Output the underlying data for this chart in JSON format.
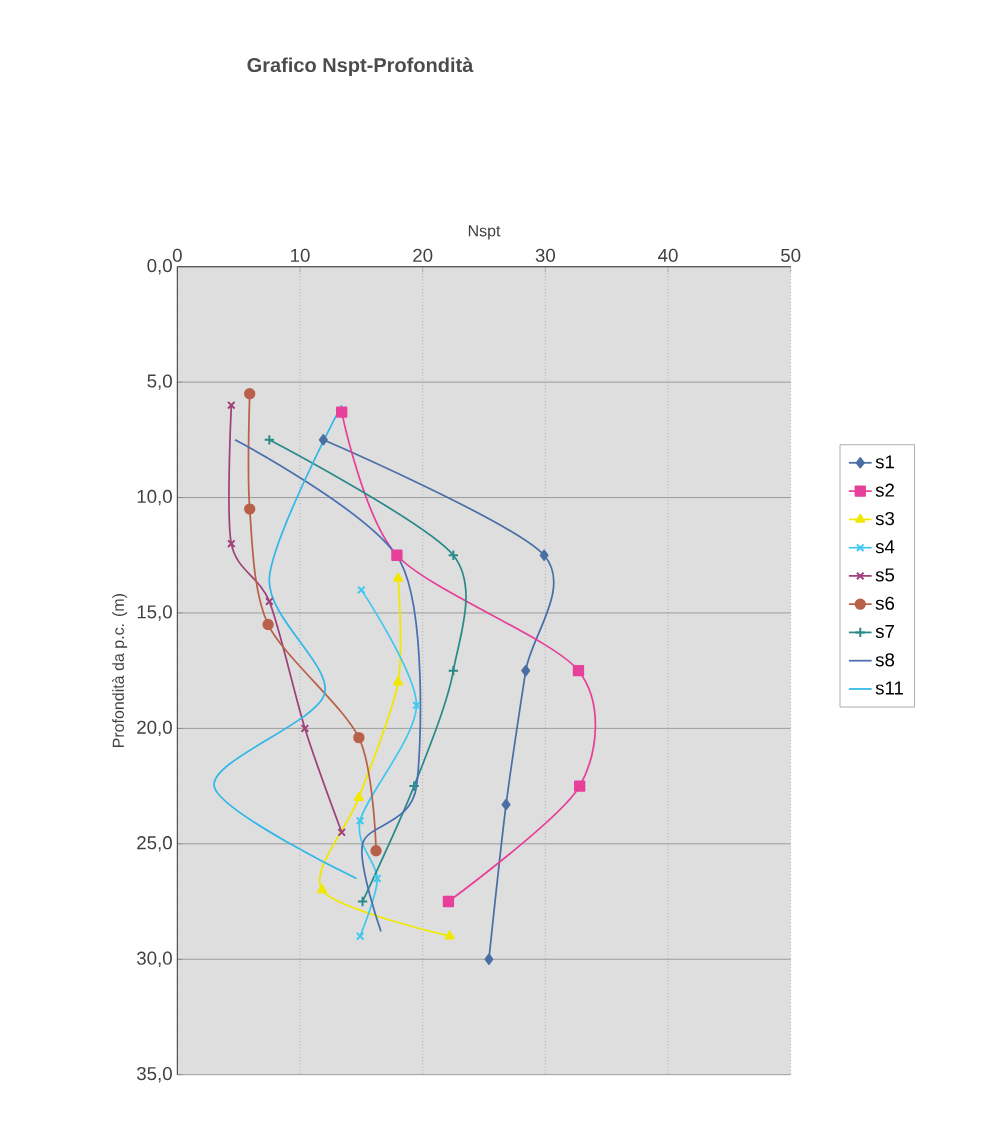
{
  "chart_data": {
    "type": "line",
    "title": "Grafico Nspt-Profondità",
    "xlabel": "Nspt",
    "ylabel": "Profondità da p.c. (m)",
    "xlim": [
      0,
      50
    ],
    "xticks": [
      0,
      10,
      20,
      30,
      40,
      50
    ],
    "ylim": [
      35,
      0
    ],
    "yticks": [
      {
        "value": 0,
        "label": "0,0"
      },
      {
        "value": 5,
        "label": "5,0"
      },
      {
        "value": 10,
        "label": "10,0"
      },
      {
        "value": 15,
        "label": "15,0"
      },
      {
        "value": 20,
        "label": "20,0"
      },
      {
        "value": 25,
        "label": "25,0"
      },
      {
        "value": 30,
        "label": "30,0"
      },
      {
        "value": 35,
        "label": "35,0"
      }
    ],
    "grid": true,
    "legend": "right",
    "series": [
      {
        "name": "s1",
        "color": "#4a6fa5",
        "marker": "diamond",
        "x": [
          11.9,
          29.9,
          28.4,
          26.8,
          25.4
        ],
        "values": [
          7.5,
          12.5,
          17.5,
          23.3,
          30
        ]
      },
      {
        "name": "s2",
        "color": "#e6409a",
        "marker": "square",
        "x": [
          13.4,
          17.9,
          32.7,
          32.8,
          22.1
        ],
        "values": [
          6.3,
          12.5,
          17.5,
          22.5,
          27.5
        ]
      },
      {
        "name": "s3",
        "color": "#f0e800",
        "marker": "triangle",
        "x": [
          18,
          18,
          14.8,
          11.8,
          22.2
        ],
        "values": [
          13.5,
          18,
          23,
          27,
          29
        ]
      },
      {
        "name": "s4",
        "color": "#40c8f0",
        "marker": "cross",
        "x": [
          15,
          19.5,
          14.9,
          16.3,
          14.9
        ],
        "values": [
          14,
          19,
          24,
          26.5,
          29
        ]
      },
      {
        "name": "s5",
        "color": "#a0407a",
        "marker": "cross",
        "x": [
          4.4,
          4.4,
          7.5,
          10.4,
          13.4
        ],
        "values": [
          6,
          12,
          14.5,
          20,
          24.5
        ]
      },
      {
        "name": "s6",
        "color": "#b8604a",
        "marker": "circle",
        "x": [
          5.9,
          5.9,
          7.4,
          14.8,
          16.2
        ],
        "values": [
          5.5,
          10.5,
          15.5,
          20.4,
          25.3
        ]
      },
      {
        "name": "s7",
        "color": "#2a8a8a",
        "marker": "plus",
        "x": [
          7.5,
          22.5,
          22.5,
          19.3,
          15.1
        ],
        "values": [
          7.5,
          12.5,
          17.5,
          22.5,
          27.5
        ]
      },
      {
        "name": "s8",
        "color": "#4a6fb0",
        "marker": "none",
        "x": [
          4.7,
          18.2,
          19.5,
          15.1,
          16.6
        ],
        "values": [
          7.5,
          12.8,
          22.5,
          25,
          28.8
        ]
      },
      {
        "name": "s11",
        "color": "#30b8e8",
        "marker": "none",
        "x": [
          13.4,
          7.5,
          12,
          3,
          14.6
        ],
        "values": [
          6,
          13.5,
          18.5,
          22.5,
          26.5
        ]
      }
    ]
  }
}
